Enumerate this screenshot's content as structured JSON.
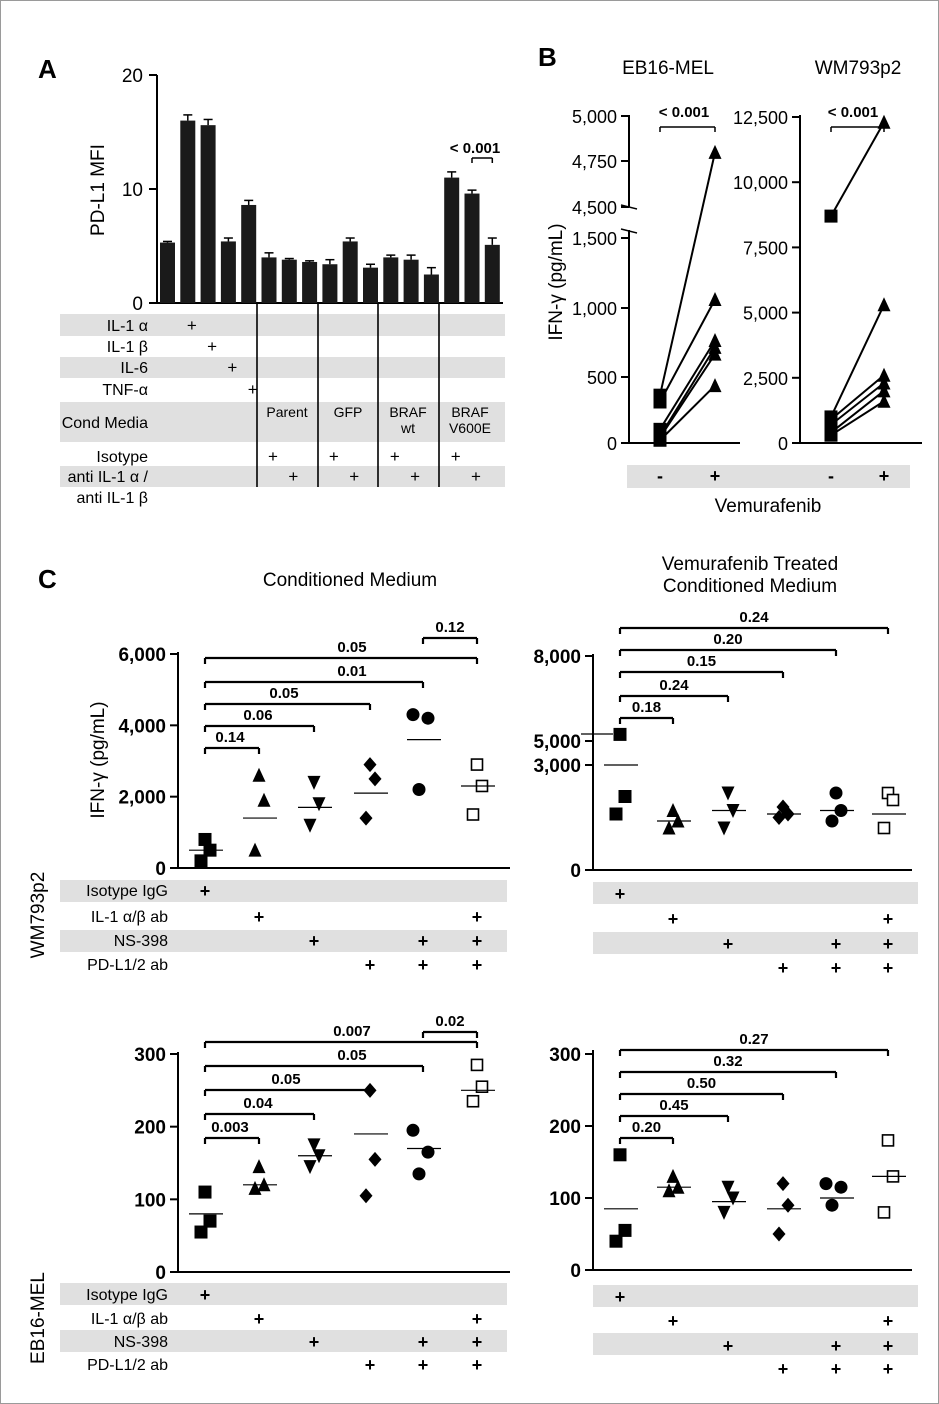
{
  "chart_data": [
    {
      "panel": "A",
      "type": "bar",
      "ylabel": "PD-L1  MFI",
      "ylim": [
        0,
        20
      ],
      "yticks": [
        "0",
        "10",
        "20"
      ],
      "values": [
        5.3,
        16.0,
        15.6,
        5.4,
        8.6,
        4.0,
        3.8,
        3.6,
        3.4,
        5.4,
        3.1,
        4.0,
        3.8,
        2.5,
        11.0,
        9.6,
        5.1
      ],
      "errors": [
        0.1,
        0.5,
        0.5,
        0.3,
        0.4,
        0.4,
        0.1,
        0.1,
        0.4,
        0.3,
        0.3,
        0.2,
        0.4,
        0.6,
        0.5,
        0.3,
        0.6
      ],
      "pvalue": "< 0.001",
      "conditions": {
        "rows": [
          {
            "label": "IL-1 α",
            "plus": [
              1
            ]
          },
          {
            "label": "IL-1 β",
            "plus": [
              2
            ]
          },
          {
            "label": "IL-6",
            "plus": [
              3
            ]
          },
          {
            "label": "TNF-α",
            "plus": [
              4
            ]
          },
          {
            "label": "Cond Media",
            "plus": []
          },
          {
            "label": "Isotype",
            "plus": [
              5,
              8,
              11,
              14
            ]
          },
          {
            "label": "anti IL-1 α /",
            "plus": [
              6,
              9,
              12,
              15
            ]
          },
          {
            "label": "anti IL-1 β",
            "plus": []
          }
        ],
        "groups": [
          "Parent",
          "GFP",
          "BRAF\nwt",
          "BRAF\nV600E"
        ]
      }
    },
    {
      "panel": "B",
      "type": "scatter",
      "ylabel": "IFN-γ (pg/mL)",
      "xlabel": "Vemurafenib",
      "xcats": [
        "-",
        "+"
      ],
      "subpanels": [
        {
          "title": "EB16-MEL",
          "pvalue": "< 0.001",
          "yticks": [
            "0",
            "500",
            "1,000",
            "1,500",
            "4,500",
            "4,750",
            "5,000"
          ],
          "pairs": [
            [
              350,
              4800
            ],
            [
              300,
              1050
            ],
            [
              100,
              750
            ],
            [
              50,
              700
            ],
            [
              20,
              420
            ],
            [
              40,
              650
            ]
          ]
        },
        {
          "title": "WM793p2",
          "pvalue": "< 0.001",
          "yticks": [
            "0",
            "2,500",
            "5,000",
            "7,500",
            "10,000",
            "12,500"
          ],
          "pairs": [
            [
              8700,
              12300
            ],
            [
              1000,
              5300
            ],
            [
              900,
              2600
            ],
            [
              700,
              2300
            ],
            [
              400,
              2000
            ],
            [
              300,
              1600
            ]
          ]
        }
      ]
    },
    {
      "panel": "C",
      "type": "scatter",
      "title": "Conditioned Medium",
      "cell_line": "WM793p2",
      "ylabel": "IFN-γ (pg/mL)",
      "yticks": [
        "0",
        "2,000",
        "4,000",
        "6,000"
      ],
      "ylim": [
        0,
        6000
      ],
      "groups": [
        {
          "marker": "square",
          "values": [
            800,
            500,
            200
          ],
          "median": 500
        },
        {
          "marker": "triangle",
          "values": [
            2600,
            1900,
            500
          ],
          "median": 1400
        },
        {
          "marker": "triangle-down",
          "values": [
            2400,
            1800,
            1200
          ],
          "median": 1700
        },
        {
          "marker": "diamond",
          "values": [
            2900,
            2500,
            1400
          ],
          "median": 2100
        },
        {
          "marker": "circle",
          "values": [
            4300,
            4200,
            2200
          ],
          "median": 3600
        },
        {
          "marker": "open-square",
          "values": [
            2900,
            2300,
            1500
          ],
          "median": 2300
        }
      ],
      "brackets": [
        "0.14",
        "0.06",
        "0.05",
        "0.01",
        "0.05",
        "0.12"
      ],
      "conditions": [
        {
          "label": "Isotype IgG",
          "plus": [
            0
          ]
        },
        {
          "label": "IL-1 α/β ab",
          "plus": [
            1,
            5
          ]
        },
        {
          "label": "NS-398",
          "plus": [
            2,
            4,
            5
          ]
        },
        {
          "label": "PD-L1/2 ab",
          "plus": [
            3,
            4,
            5
          ]
        }
      ]
    },
    {
      "panel": "C",
      "type": "scatter",
      "title": "Vemurafenib Treated\nConditioned Medium",
      "cell_line": "WM793p2",
      "yticks": [
        "0",
        "3,000",
        "5,000",
        "8,000"
      ],
      "groups": [
        {
          "marker": "square",
          "values": [
            5200,
            2100,
            1600
          ],
          "median": 3000
        },
        {
          "marker": "triangle",
          "values": [
            1700,
            1400,
            1200
          ],
          "median": 1400
        },
        {
          "marker": "triangle-down",
          "values": [
            2200,
            1700,
            1200
          ],
          "median": 1700
        },
        {
          "marker": "diamond",
          "values": [
            1800,
            1600,
            1500
          ],
          "median": 1600
        },
        {
          "marker": "circle",
          "values": [
            2200,
            1700,
            1400
          ],
          "median": 1700
        },
        {
          "marker": "open-square",
          "values": [
            2200,
            2000,
            1200
          ],
          "median": 1600
        }
      ],
      "brackets": [
        "0.18",
        "0.24",
        "0.15",
        "0.20",
        "0.24"
      ],
      "conditions": [
        {
          "label": "",
          "plus": [
            0
          ]
        },
        {
          "label": "",
          "plus": [
            1,
            5
          ]
        },
        {
          "label": "",
          "plus": [
            2,
            4,
            5
          ]
        },
        {
          "label": "",
          "plus": [
            3,
            4,
            5
          ]
        }
      ]
    },
    {
      "panel": "C",
      "type": "scatter",
      "cell_line": "EB16-MEL",
      "yticks": [
        "0",
        "100",
        "200",
        "300"
      ],
      "ylim": [
        0,
        300
      ],
      "groups": [
        {
          "marker": "square",
          "values": [
            110,
            70,
            55
          ],
          "median": 80
        },
        {
          "marker": "triangle",
          "values": [
            145,
            120,
            115
          ],
          "median": 120
        },
        {
          "marker": "triangle-down",
          "values": [
            175,
            160,
            145
          ],
          "median": 160
        },
        {
          "marker": "diamond",
          "values": [
            250,
            155,
            105
          ],
          "median": 190
        },
        {
          "marker": "circle",
          "values": [
            195,
            165,
            135
          ],
          "median": 170
        },
        {
          "marker": "open-square",
          "values": [
            285,
            255,
            235
          ],
          "median": 250
        }
      ],
      "brackets": [
        "0.003",
        "0.04",
        "0.05",
        "0.05",
        "0.007",
        "0.02"
      ],
      "conditions": [
        {
          "label": "Isotype IgG",
          "plus": [
            0
          ]
        },
        {
          "label": "IL-1 α/β ab",
          "plus": [
            1,
            5
          ]
        },
        {
          "label": "NS-398",
          "plus": [
            2,
            4,
            5
          ]
        },
        {
          "label": "PD-L1/2 ab",
          "plus": [
            3,
            4,
            5
          ]
        }
      ]
    },
    {
      "panel": "C",
      "type": "scatter",
      "cell_line": "EB16-MEL",
      "yticks": [
        "0",
        "100",
        "200",
        "300"
      ],
      "ylim": [
        0,
        300
      ],
      "groups": [
        {
          "marker": "square",
          "values": [
            160,
            55,
            40
          ],
          "median": 85
        },
        {
          "marker": "triangle",
          "values": [
            130,
            115,
            110
          ],
          "median": 115
        },
        {
          "marker": "triangle-down",
          "values": [
            115,
            100,
            80
          ],
          "median": 95
        },
        {
          "marker": "diamond",
          "values": [
            120,
            90,
            50
          ],
          "median": 85
        },
        {
          "marker": "circle",
          "values": [
            120,
            115,
            90
          ],
          "median": 100
        },
        {
          "marker": "open-square",
          "values": [
            180,
            130,
            80
          ],
          "median": 130
        }
      ],
      "brackets": [
        "0.20",
        "0.45",
        "0.50",
        "0.32",
        "0.27"
      ],
      "conditions": [
        {
          "label": "",
          "plus": [
            0
          ]
        },
        {
          "label": "",
          "plus": [
            1,
            5
          ]
        },
        {
          "label": "",
          "plus": [
            2,
            4,
            5
          ]
        },
        {
          "label": "",
          "plus": [
            3,
            4,
            5
          ]
        }
      ]
    }
  ],
  "labels": {
    "A": "A",
    "B": "B",
    "C": "C",
    "plus": "+",
    "minus": "-",
    "cell_wm": "WM793p2",
    "cell_eb": "EB16-MEL"
  }
}
